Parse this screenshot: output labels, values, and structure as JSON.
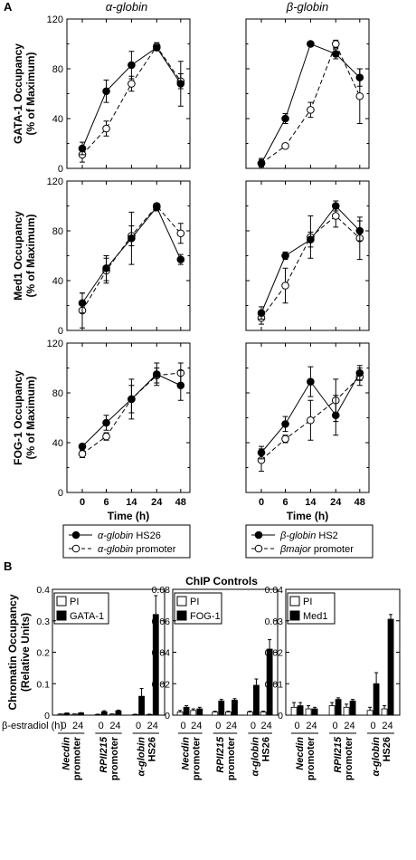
{
  "panel_a": {
    "letter": "A"
  },
  "panel_b": {
    "letter": "B",
    "title": "ChIP Controls"
  },
  "chart_data": [
    {
      "type": "line",
      "panel": "A",
      "column": "α-globin",
      "ylabel": "GATA-1 Occupancy (% of Maximum)",
      "categories": [
        "0",
        "6",
        "14",
        "24",
        "48"
      ],
      "ylim": [
        0,
        120
      ],
      "yticks": [
        "0",
        "40",
        "80",
        "120"
      ],
      "xlabel": "",
      "show_xticks": false,
      "series": [
        {
          "name": "α-globin HS26",
          "style": "solid-filled",
          "values": [
            16,
            62,
            83,
            97,
            68
          ],
          "errors": [
            5,
            9,
            11,
            2,
            18
          ]
        },
        {
          "name": "α-globin promoter",
          "style": "dashed-open",
          "values": [
            11,
            32,
            68,
            98,
            70
          ],
          "errors": [
            6,
            6,
            6,
            3,
            6
          ]
        }
      ]
    },
    {
      "type": "line",
      "panel": "A",
      "column": "β-globin",
      "ylabel": "",
      "categories": [
        "0",
        "6",
        "14",
        "24",
        "48"
      ],
      "ylim": [
        0,
        120
      ],
      "yticks": [
        "0",
        "40",
        "80",
        "120"
      ],
      "xlabel": "",
      "show_xticks": false,
      "series": [
        {
          "name": "β-globin HS2",
          "style": "solid-filled",
          "values": [
            4,
            40,
            100,
            92,
            73
          ],
          "errors": [
            4,
            4,
            2,
            4,
            7
          ]
        },
        {
          "name": "βmajor promoter",
          "style": "dashed-open",
          "values": [
            4,
            18,
            47,
            100,
            58
          ],
          "errors": [
            3,
            2,
            6,
            3,
            22
          ]
        }
      ]
    },
    {
      "type": "line",
      "panel": "A",
      "column": "α-globin",
      "ylabel": "Med1 Occupancy (% of Maximum)",
      "categories": [
        "0",
        "6",
        "14",
        "24",
        "48"
      ],
      "ylim": [
        0,
        120
      ],
      "yticks": [
        "0",
        "40",
        "80",
        "120"
      ],
      "xlabel": "",
      "show_xticks": false,
      "series": [
        {
          "name": "α-globin HS26",
          "style": "solid-filled",
          "values": [
            22,
            50,
            74,
            99,
            57
          ],
          "errors": [
            8,
            10,
            21,
            3,
            4
          ]
        },
        {
          "name": "α-globin promoter",
          "style": "dashed-open",
          "values": [
            16,
            48,
            76,
            100,
            78
          ],
          "errors": [
            14,
            10,
            8,
            2,
            8
          ]
        }
      ]
    },
    {
      "type": "line",
      "panel": "A",
      "column": "β-globin",
      "ylabel": "",
      "categories": [
        "0",
        "6",
        "14",
        "24",
        "48"
      ],
      "ylim": [
        0,
        120
      ],
      "yticks": [
        "0",
        "40",
        "80",
        "120"
      ],
      "xlabel": "",
      "show_xticks": false,
      "series": [
        {
          "name": "β-globin HS2",
          "style": "solid-filled",
          "values": [
            14,
            60,
            73,
            100,
            80
          ],
          "errors": [
            5,
            3,
            6,
            4,
            8
          ]
        },
        {
          "name": "βmajor promoter",
          "style": "dashed-open",
          "values": [
            10,
            36,
            75,
            92,
            74
          ],
          "errors": [
            5,
            14,
            17,
            9,
            17
          ]
        }
      ]
    },
    {
      "type": "line",
      "panel": "A",
      "column": "α-globin",
      "ylabel": "FOG-1 Occupancy (% of Maximum)",
      "categories": [
        "0",
        "6",
        "14",
        "24",
        "48"
      ],
      "ylim": [
        0,
        120
      ],
      "yticks": [
        "0",
        "40",
        "80",
        "120"
      ],
      "xlabel": "Time (h)",
      "show_xticks": true,
      "series": [
        {
          "name": "α-globin HS26",
          "style": "solid-filled",
          "values": [
            37,
            56,
            75,
            95,
            86
          ],
          "errors": [
            2,
            6,
            11,
            9,
            12
          ]
        },
        {
          "name": "α-globin promoter",
          "style": "dashed-open",
          "values": [
            31,
            45,
            75,
            94,
            96
          ],
          "errors": [
            3,
            3,
            16,
            6,
            8
          ]
        }
      ]
    },
    {
      "type": "line",
      "panel": "A",
      "column": "β-globin",
      "ylabel": "",
      "categories": [
        "0",
        "6",
        "14",
        "24",
        "48"
      ],
      "ylim": [
        0,
        120
      ],
      "yticks": [
        "0",
        "40",
        "80",
        "120"
      ],
      "xlabel": "Time (h)",
      "show_xticks": true,
      "series": [
        {
          "name": "β-globin HS2",
          "style": "solid-filled",
          "values": [
            32,
            55,
            89,
            62,
            96
          ],
          "errors": [
            5,
            6,
            12,
            16,
            6
          ]
        },
        {
          "name": "βmajor promoter",
          "style": "dashed-open",
          "values": [
            26,
            43,
            58,
            74,
            93
          ],
          "errors": [
            9,
            3,
            16,
            17,
            7
          ]
        }
      ]
    },
    {
      "type": "bar",
      "panel": "B",
      "ylabel": "Chromatin Occupancy (Relative Units)",
      "xlabel": "β-estradiol (h)",
      "ylim": [
        0,
        0.4
      ],
      "yticks": [
        "0",
        "0.1",
        "0.2",
        "0.3",
        "0.4"
      ],
      "groups": [
        "Necdin promoter",
        "RPII215 promoter",
        "α-globin HS26"
      ],
      "timepoints": [
        "0",
        "24"
      ],
      "series": [
        {
          "name": "PI",
          "fill": "open",
          "values": [
            0.003,
            0.003,
            0.002,
            0.003,
            0.002,
            0.002
          ],
          "errors": [
            0.001,
            0.001,
            0.001,
            0.001,
            0.001,
            0.001
          ]
        },
        {
          "name": "GATA-1",
          "fill": "solid",
          "values": [
            0.006,
            0.007,
            0.011,
            0.014,
            0.06,
            0.32
          ],
          "errors": [
            0.001,
            0.001,
            0.003,
            0.002,
            0.025,
            0.06
          ]
        }
      ]
    },
    {
      "type": "bar",
      "panel": "B",
      "ylabel": "",
      "xlabel": "",
      "ylim": [
        0,
        0.08
      ],
      "yticks": [
        "0",
        "0.02",
        "0.04",
        "0.06",
        "0.08"
      ],
      "groups": [
        "Necdin promoter",
        "RPII215 promoter",
        "α-globin HS26"
      ],
      "timepoints": [
        "0",
        "24"
      ],
      "series": [
        {
          "name": "PI",
          "fill": "open",
          "values": [
            0.002,
            0.003,
            0.002,
            0.002,
            0.002,
            0.002
          ],
          "errors": [
            0.001,
            0.001,
            0.0005,
            0.0005,
            0.0005,
            0.0005
          ]
        },
        {
          "name": "FOG-1",
          "fill": "solid",
          "values": [
            0.005,
            0.004,
            0.009,
            0.0095,
            0.019,
            0.042
          ],
          "errors": [
            0.001,
            0.001,
            0.001,
            0.001,
            0.004,
            0.006
          ]
        }
      ]
    },
    {
      "type": "bar",
      "panel": "B",
      "ylabel": "",
      "xlabel": "",
      "ylim": [
        0,
        0.04
      ],
      "yticks": [
        "0",
        "0.01",
        "0.02",
        "0.03",
        "0.04"
      ],
      "groups": [
        "Necdin promoter",
        "RPII215 promoter",
        "α-globin HS26"
      ],
      "timepoints": [
        "0",
        "24"
      ],
      "series": [
        {
          "name": "PI",
          "fill": "open",
          "values": [
            0.0025,
            0.002,
            0.003,
            0.0025,
            0.0015,
            0.002
          ],
          "errors": [
            0.0015,
            0.001,
            0.001,
            0.001,
            0.001,
            0.001
          ]
        },
        {
          "name": "Med1",
          "fill": "solid",
          "values": [
            0.003,
            0.002,
            0.005,
            0.0045,
            0.01,
            0.0305
          ],
          "errors": [
            0.001,
            0.0005,
            0.0005,
            0.0005,
            0.0035,
            0.0015
          ]
        }
      ]
    }
  ]
}
